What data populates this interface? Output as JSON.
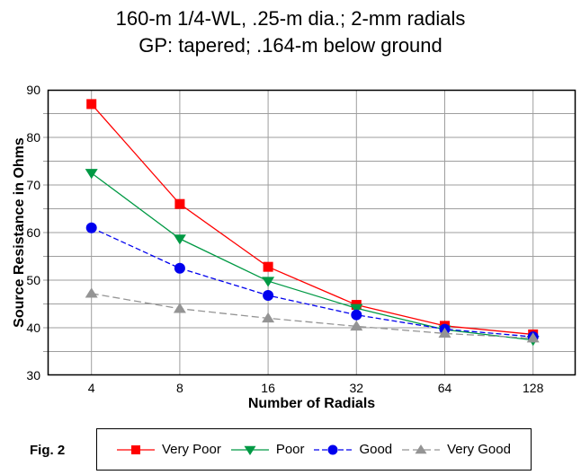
{
  "title": {
    "line1": "160-m 1/4-WL, .25-m dia.; 2-mm radials",
    "line2": "GP: tapered; .164-m below ground"
  },
  "figure_label": "Fig. 2",
  "colors": {
    "grid": "#9e9e9e",
    "axis_frame": "#000000",
    "background": "#ffffff"
  },
  "chart_data": {
    "type": "line",
    "x_scale": "log2",
    "categories": [
      4,
      8,
      16,
      32,
      64,
      128
    ],
    "xlabel": "Number of Radials",
    "ylabel": "Source Resistance in Ohms",
    "ylim": [
      30,
      90
    ],
    "y_major_ticks": [
      90,
      80,
      70,
      60,
      50,
      40,
      30
    ],
    "y_grid_step": 5,
    "grid": true,
    "legend_position": "bottom",
    "series": [
      {
        "name": "Very Poor",
        "marker": "square",
        "color": "#ff0000",
        "dash": "",
        "values": [
          87.0,
          66.0,
          52.8,
          44.8,
          40.4,
          38.6
        ]
      },
      {
        "name": "Poor",
        "marker": "triangle-down",
        "color": "#009944",
        "dash": "",
        "values": [
          72.5,
          58.7,
          49.8,
          44.1,
          39.6,
          37.4
        ]
      },
      {
        "name": "Good",
        "marker": "circle",
        "color": "#0000ee",
        "dash": "6,3",
        "values": [
          61.0,
          52.5,
          46.8,
          42.7,
          39.7,
          38.1
        ]
      },
      {
        "name": "Very Good",
        "marker": "triangle-up",
        "color": "#949494",
        "dash": "8,4",
        "values": [
          47.2,
          44.0,
          42.0,
          40.3,
          38.8,
          37.8
        ]
      }
    ]
  }
}
